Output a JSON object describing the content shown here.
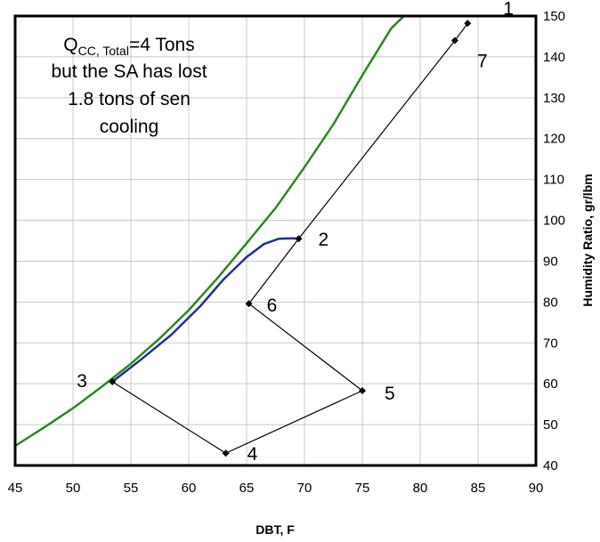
{
  "chart_data": {
    "type": "line",
    "title": "",
    "xlabel": "DBT, F",
    "ylabel": "Humidity Ratio, gr/lbm",
    "xlim": [
      45,
      90
    ],
    "ylim": [
      40,
      150
    ],
    "x_ticks": [
      "45",
      "50",
      "55",
      "60",
      "65",
      "70",
      "75",
      "80",
      "85",
      "90"
    ],
    "y_ticks": [
      "40",
      "50",
      "60",
      "70",
      "80",
      "90",
      "100",
      "110",
      "120",
      "130",
      "140",
      "150"
    ],
    "grid": true,
    "annotation": {
      "line1_main": "Q",
      "line1_sub": "CC, Total",
      "line1_rest": "=4 Tons",
      "line2": "but the SA has lost",
      "line3": "1.8 tons of sen",
      "line4": "cooling"
    },
    "colors": {
      "saturation": "#2a8a1f",
      "coil_process": "#1f2f9e",
      "process": "#000000",
      "grid": "#c8c8c8"
    },
    "series": [
      {
        "x": [
          45,
          47.5,
          50,
          52.5,
          55,
          57.5,
          60,
          62.5,
          65,
          67.5,
          70,
          72.5,
          75,
          77.5,
          78.6
        ],
        "y": [
          44.8,
          49.3,
          54.0,
          59.3,
          64.9,
          71.1,
          78.0,
          85.9,
          94.4,
          103.0,
          113.0,
          123.5,
          135.5,
          147.0,
          150.0
        ]
      },
      {
        "x": [
          53.4,
          56.0,
          58.5,
          61.0,
          63.0,
          65.0,
          66.5,
          67.8,
          69.0,
          69.5
        ],
        "y": [
          60.5,
          66.2,
          72.0,
          79.0,
          85.5,
          91.0,
          94.2,
          95.5,
          95.6,
          95.5
        ]
      },
      {
        "x": [
          84.1,
          83.0,
          69.5,
          65.2,
          75.0,
          63.2,
          53.4
        ],
        "y": [
          148.2,
          144.0,
          95.5,
          79.6,
          58.3,
          43.0,
          60.5
        ]
      }
    ],
    "points": [
      {
        "label": "1",
        "x": 84.1,
        "y": 148.2
      },
      {
        "label": "7",
        "x": 83.0,
        "y": 144.0
      },
      {
        "label": "2",
        "x": 69.5,
        "y": 95.5
      },
      {
        "label": "6",
        "x": 65.2,
        "y": 79.6
      },
      {
        "label": "5",
        "x": 75.0,
        "y": 58.3
      },
      {
        "label": "4",
        "x": 63.2,
        "y": 43.0
      },
      {
        "label": "3",
        "x": 53.4,
        "y": 60.5
      }
    ]
  }
}
